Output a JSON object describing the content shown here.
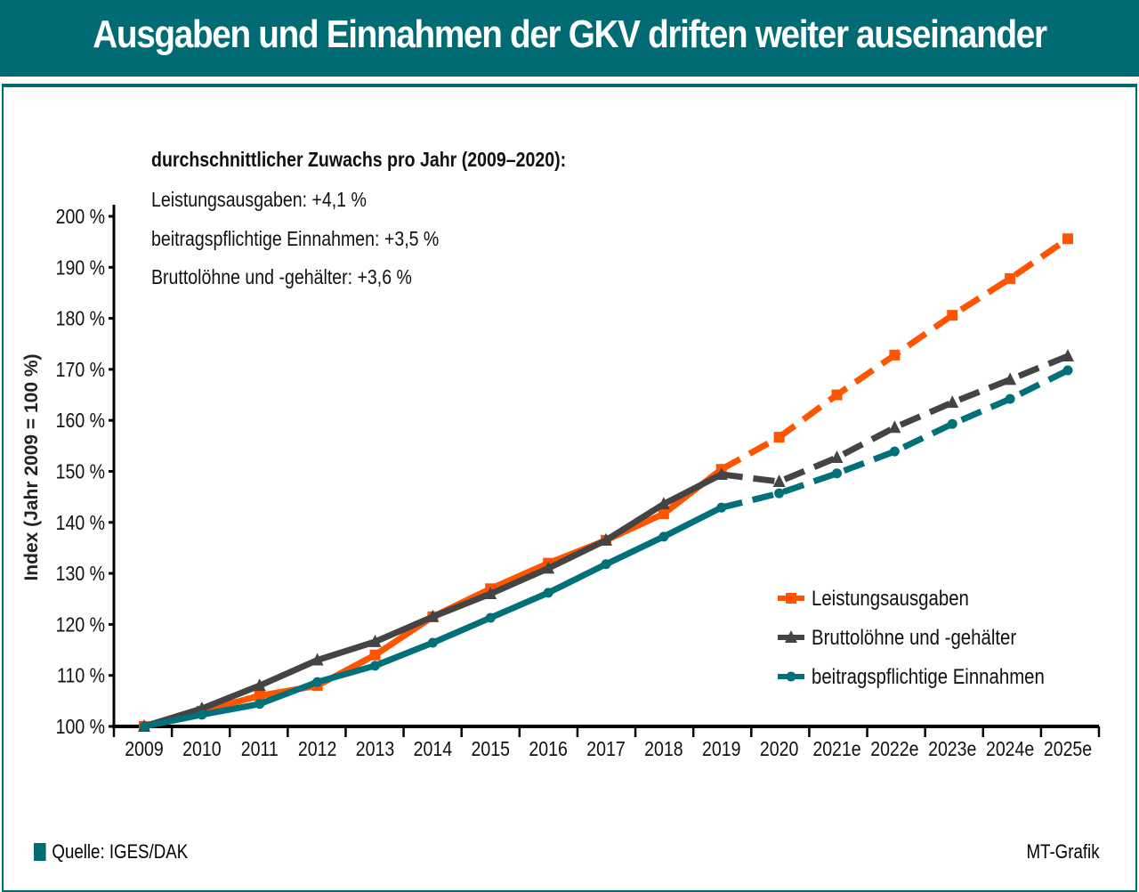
{
  "title": "Ausgaben und Einnahmen der GKV driften weiter auseinander",
  "notes": {
    "heading": "durchschnittlicher  Zuwachs pro Jahr (2009–2020):",
    "lines": [
      "Leistungsausgaben: +4,1 %",
      "beitragspflichtige Einnahmen: +3,5 %",
      "Bruttolöhne und -gehälter: +3,6 %"
    ]
  },
  "footer": {
    "source": "Quelle: IGES/DAK",
    "credit": "MT-Grafik"
  },
  "chart_data": {
    "type": "line",
    "ylabel": "Index (Jahr 2009 = 100 %)",
    "ylim": [
      100,
      200
    ],
    "yticks": [
      "100 %",
      "110 %",
      "120 %",
      "130 %",
      "140 %",
      "150 %",
      "160 %",
      "170 %",
      "180 %",
      "190 %",
      "200 %"
    ],
    "categories": [
      "2009",
      "2010",
      "2011",
      "2012",
      "2013",
      "2014",
      "2015",
      "2016",
      "2017",
      "2018",
      "2019",
      "2020",
      "2021e",
      "2022e",
      "2023e",
      "2024e",
      "2025e"
    ],
    "legend_position": "right",
    "grid": false,
    "dashed_from": "2019",
    "series": [
      {
        "name": "Leistungsausgaben",
        "color": "#ff5500",
        "marker": "square",
        "values": [
          100,
          103,
          106,
          108,
          114,
          121.5,
          127,
          132,
          136.5,
          141.7,
          150.4,
          156.7,
          165,
          172.8,
          180.6,
          187.8,
          195.6
        ]
      },
      {
        "name": "Bruttolöhne und -gehälter",
        "color": "#444444",
        "marker": "triangle",
        "values": [
          100,
          103.5,
          108,
          113,
          116.6,
          121.5,
          126,
          131,
          136.5,
          143.6,
          149.4,
          148,
          152.7,
          158.6,
          163.5,
          168,
          172.6
        ]
      },
      {
        "name": "beitragspflichtige Einnahmen",
        "color": "#00707a",
        "marker": "circle",
        "values": [
          100,
          102.3,
          104.4,
          108.7,
          111.9,
          116.4,
          121.3,
          126.2,
          131.8,
          137.2,
          142.9,
          145.7,
          149.6,
          153.9,
          159.3,
          164.2,
          169.8
        ]
      }
    ]
  }
}
